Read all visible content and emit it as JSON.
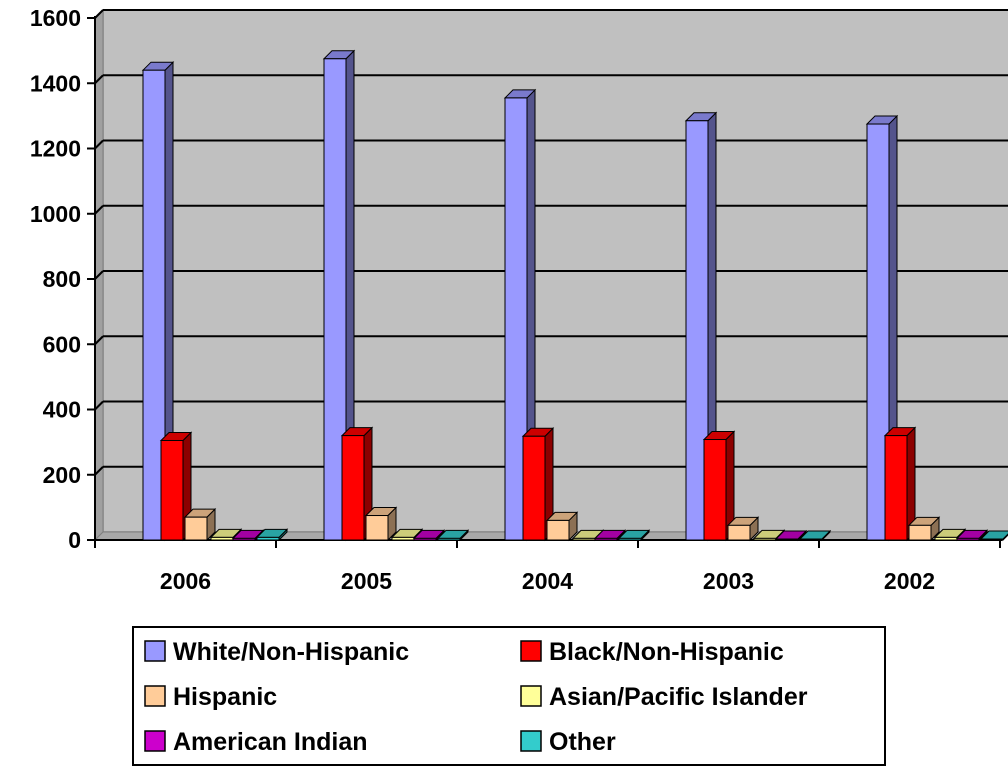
{
  "chart_data": {
    "type": "bar",
    "three_d": true,
    "categories": [
      "2006",
      "2005",
      "2004",
      "2003",
      "2002"
    ],
    "series": [
      {
        "name": "White/Non-Hispanic",
        "color": "#9999FF",
        "values": [
          1440,
          1475,
          1355,
          1285,
          1275
        ]
      },
      {
        "name": "Black/Non-Hispanic",
        "color": "#FF0000",
        "values": [
          305,
          320,
          318,
          308,
          320
        ]
      },
      {
        "name": "Hispanic",
        "color": "#FFCC99",
        "values": [
          70,
          75,
          60,
          45,
          45
        ]
      },
      {
        "name": "Asian/Pacific Islander",
        "color": "#FFFF99",
        "values": [
          8,
          8,
          5,
          5,
          8
        ]
      },
      {
        "name": "American Indian",
        "color": "#CC00CC",
        "values": [
          5,
          5,
          5,
          3,
          5
        ]
      },
      {
        "name": "Other",
        "color": "#33CCCC",
        "values": [
          8,
          5,
          5,
          3,
          3
        ]
      }
    ],
    "ylim": [
      0,
      1600
    ],
    "yticks": [
      0,
      200,
      400,
      600,
      800,
      1000,
      1200,
      1400,
      1600
    ],
    "grid": true,
    "plot_background": "#C0C0C0",
    "legend_position": "bottom",
    "title": "",
    "xlabel": "",
    "ylabel": ""
  }
}
